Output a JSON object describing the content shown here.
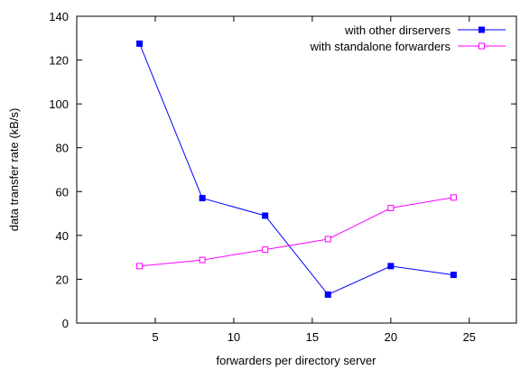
{
  "chart_data": {
    "type": "line",
    "title": "",
    "xlabel": "forwarders per directory server",
    "ylabel": "data transfer rate (kB/s)",
    "xlim": [
      0,
      28
    ],
    "ylim": [
      0,
      140
    ],
    "xticks": [
      5,
      10,
      15,
      20,
      25
    ],
    "yticks": [
      0,
      20,
      40,
      60,
      80,
      100,
      120,
      140
    ],
    "grid": false,
    "legend_position": "top-right",
    "series": [
      {
        "name": "with other dirservers",
        "color": "#0000ff",
        "marker": "filled-square",
        "x": [
          4,
          8,
          12,
          16,
          20,
          24
        ],
        "y": [
          127.5,
          57,
          49,
          13,
          26,
          22
        ]
      },
      {
        "name": "with standalone forwarders",
        "color": "#ff00ff",
        "marker": "open-square",
        "x": [
          4,
          8,
          12,
          16,
          20,
          24
        ],
        "y": [
          26,
          28.8,
          33.5,
          38.3,
          52.5,
          57.3
        ]
      }
    ]
  }
}
